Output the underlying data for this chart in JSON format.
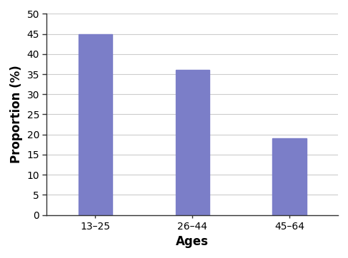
{
  "categories": [
    "13–25",
    "26–44",
    "45–64"
  ],
  "values": [
    45,
    36,
    19
  ],
  "bar_color": "#7b7ec8",
  "xlabel": "Ages",
  "ylabel": "Proportion (%)",
  "ylim": [
    0,
    50
  ],
  "yticks": [
    0,
    5,
    10,
    15,
    20,
    25,
    30,
    35,
    40,
    45,
    50
  ],
  "xlabel_fontsize": 12,
  "ylabel_fontsize": 12,
  "tick_fontsize": 10,
  "xlabel_fontweight": "bold",
  "ylabel_fontweight": "bold",
  "bar_width": 0.35,
  "grid_color": "#cccccc",
  "spine_color": "#333333",
  "background_color": "#ffffff"
}
